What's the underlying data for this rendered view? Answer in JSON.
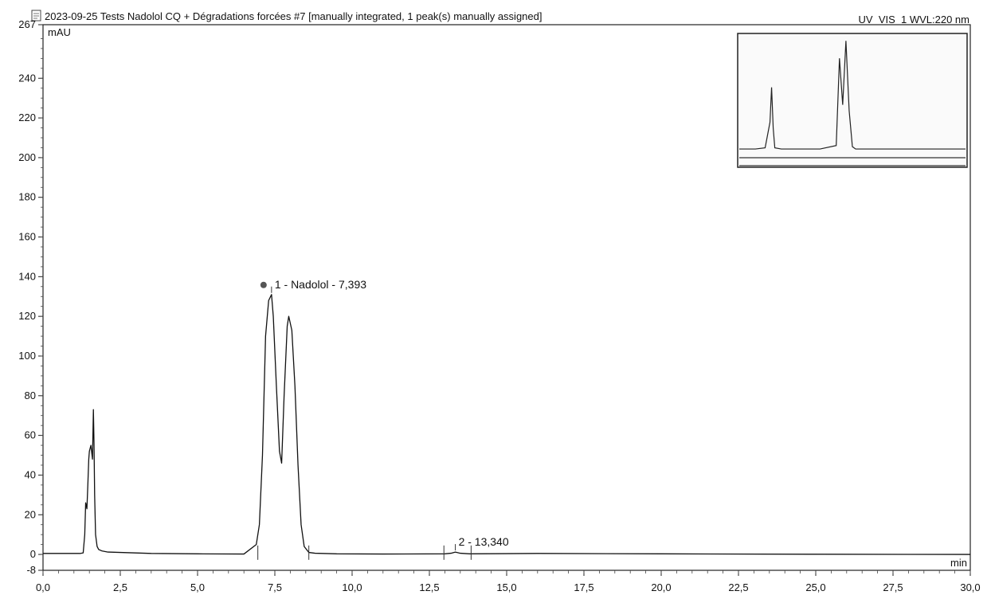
{
  "header": {
    "title": "2023-09-25 Tests Nadolol CQ + Dégradations forcées #7 [manually integrated, 1 peak(s) manually assigned]",
    "detector": "UV_VIS_1 WVL:220 nm",
    "doc_icon": "chromatogram-document-icon"
  },
  "chart_data": {
    "type": "line",
    "xlabel": "min",
    "ylabel": "mAU",
    "xlim": [
      0,
      30
    ],
    "ylim": [
      -8,
      267
    ],
    "grid": false,
    "x_ticks": [
      "0,0",
      "2,5",
      "5,0",
      "7,5",
      "10,0",
      "12,5",
      "15,0",
      "17,5",
      "20,0",
      "22,5",
      "25,0",
      "27,5",
      "30,0"
    ],
    "y_ticks": [
      "-8",
      "0",
      "20",
      "40",
      "60",
      "80",
      "100",
      "120",
      "140",
      "160",
      "180",
      "200",
      "220",
      "240",
      "267"
    ],
    "series": [
      {
        "x": [
          0.0,
          1.2,
          1.3,
          1.35,
          1.38,
          1.42,
          1.45,
          1.48,
          1.5,
          1.55,
          1.6,
          1.63,
          1.65,
          1.67,
          1.7,
          1.75,
          1.8,
          1.9,
          2.1,
          2.5,
          3.5,
          5.0,
          6.5,
          6.9,
          7.0,
          7.1,
          7.2,
          7.3,
          7.393,
          7.45,
          7.55,
          7.65,
          7.72,
          7.8,
          7.9,
          7.95,
          8.05,
          8.15,
          8.25,
          8.35,
          8.45,
          8.6,
          8.8,
          9.5,
          11.0,
          13.0,
          13.2,
          13.34,
          13.5,
          13.8,
          16.0,
          20.0,
          25.0,
          30.0
        ],
        "values": [
          0.5,
          0.5,
          0.8,
          10,
          26,
          23,
          35,
          48,
          52,
          55,
          48,
          73,
          56,
          30,
          10,
          4,
          2.5,
          1.8,
          1.2,
          1.0,
          0.5,
          0.3,
          0.2,
          5,
          15,
          50,
          110,
          128,
          131,
          120,
          85,
          52,
          46,
          80,
          115,
          120,
          113,
          85,
          45,
          15,
          4,
          1,
          0.6,
          0.3,
          0.2,
          0.3,
          0.6,
          1.2,
          0.6,
          0.3,
          0.5,
          0.3,
          0.1,
          0.0
        ]
      }
    ],
    "annotations": [
      {
        "label": "1 - Nadolol - 7,393",
        "x": 7.393,
        "y": 131
      },
      {
        "label": "2 - 13,340",
        "x": 13.34,
        "y": 1.2
      }
    ],
    "baseline_marks": [
      6.95,
      8.6,
      12.97,
      13.85
    ],
    "inset": {
      "description_type": "overview",
      "x": [
        0.0,
        0.5,
        0.8,
        0.95,
        1.0,
        1.05,
        1.1,
        1.3,
        2.5,
        3.0,
        3.1,
        3.2,
        3.3,
        3.4,
        3.5,
        3.6,
        5.0,
        7.0
      ],
      "values": [
        2,
        2,
        3,
        25,
        55,
        20,
        3,
        2,
        2,
        5,
        80,
        40,
        95,
        35,
        4,
        2,
        2,
        2
      ]
    }
  }
}
